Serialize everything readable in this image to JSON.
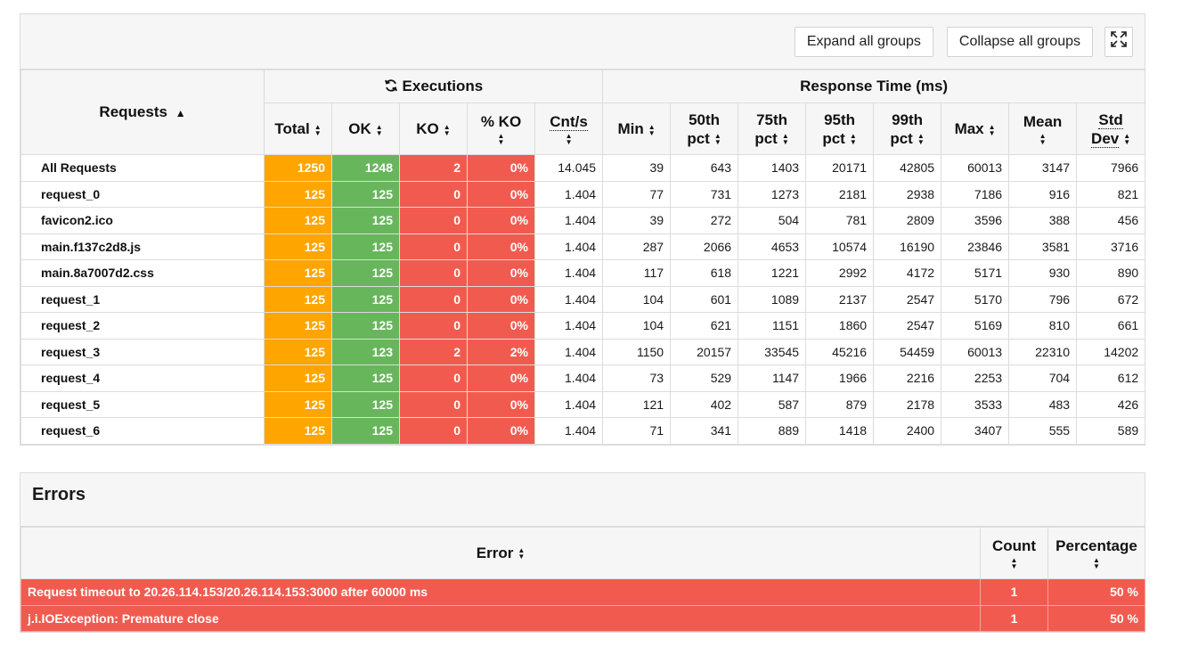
{
  "toolbar": {
    "expand_label": "Expand all groups",
    "collapse_label": "Collapse all groups",
    "fullscreen_icon": "expand-arrows-icon"
  },
  "stats": {
    "requests_header": "Requests",
    "executions_header": "Executions",
    "response_time_header": "Response Time (ms)",
    "columns": {
      "total": "Total",
      "ok": "OK",
      "ko": "KO",
      "pko": "% KO",
      "cnts": "Cnt/s",
      "min": "Min",
      "p50a": "50th",
      "p50b": "pct",
      "p75a": "75th",
      "p75b": "pct",
      "p95a": "95th",
      "p95b": "pct",
      "p99a": "99th",
      "p99b": "pct",
      "max": "Max",
      "mean": "Mean",
      "stda": "Std",
      "stdb": "Dev"
    },
    "rows": [
      {
        "name": "All Requests",
        "total": "1250",
        "ok": "1248",
        "ko": "2",
        "pko": "0%",
        "cnts": "14.045",
        "min": "39",
        "p50": "643",
        "p75": "1403",
        "p95": "20171",
        "p99": "42805",
        "max": "60013",
        "mean": "3147",
        "std": "7966"
      },
      {
        "name": "request_0",
        "total": "125",
        "ok": "125",
        "ko": "0",
        "pko": "0%",
        "cnts": "1.404",
        "min": "77",
        "p50": "731",
        "p75": "1273",
        "p95": "2181",
        "p99": "2938",
        "max": "7186",
        "mean": "916",
        "std": "821"
      },
      {
        "name": "favicon2.ico",
        "total": "125",
        "ok": "125",
        "ko": "0",
        "pko": "0%",
        "cnts": "1.404",
        "min": "39",
        "p50": "272",
        "p75": "504",
        "p95": "781",
        "p99": "2809",
        "max": "3596",
        "mean": "388",
        "std": "456"
      },
      {
        "name": "main.f137c2d8.js",
        "total": "125",
        "ok": "125",
        "ko": "0",
        "pko": "0%",
        "cnts": "1.404",
        "min": "287",
        "p50": "2066",
        "p75": "4653",
        "p95": "10574",
        "p99": "16190",
        "max": "23846",
        "mean": "3581",
        "std": "3716"
      },
      {
        "name": "main.8a7007d2.css",
        "total": "125",
        "ok": "125",
        "ko": "0",
        "pko": "0%",
        "cnts": "1.404",
        "min": "117",
        "p50": "618",
        "p75": "1221",
        "p95": "2992",
        "p99": "4172",
        "max": "5171",
        "mean": "930",
        "std": "890"
      },
      {
        "name": "request_1",
        "total": "125",
        "ok": "125",
        "ko": "0",
        "pko": "0%",
        "cnts": "1.404",
        "min": "104",
        "p50": "601",
        "p75": "1089",
        "p95": "2137",
        "p99": "2547",
        "max": "5170",
        "mean": "796",
        "std": "672"
      },
      {
        "name": "request_2",
        "total": "125",
        "ok": "125",
        "ko": "0",
        "pko": "0%",
        "cnts": "1.404",
        "min": "104",
        "p50": "621",
        "p75": "1151",
        "p95": "1860",
        "p99": "2547",
        "max": "5169",
        "mean": "810",
        "std": "661"
      },
      {
        "name": "request_3",
        "total": "125",
        "ok": "123",
        "ko": "2",
        "pko": "2%",
        "cnts": "1.404",
        "min": "1150",
        "p50": "20157",
        "p75": "33545",
        "p95": "45216",
        "p99": "54459",
        "max": "60013",
        "mean": "22310",
        "std": "14202"
      },
      {
        "name": "request_4",
        "total": "125",
        "ok": "125",
        "ko": "0",
        "pko": "0%",
        "cnts": "1.404",
        "min": "73",
        "p50": "529",
        "p75": "1147",
        "p95": "1966",
        "p99": "2216",
        "max": "2253",
        "mean": "704",
        "std": "612"
      },
      {
        "name": "request_5",
        "total": "125",
        "ok": "125",
        "ko": "0",
        "pko": "0%",
        "cnts": "1.404",
        "min": "121",
        "p50": "402",
        "p75": "587",
        "p95": "879",
        "p99": "2178",
        "max": "3533",
        "mean": "483",
        "std": "426"
      },
      {
        "name": "request_6",
        "total": "125",
        "ok": "125",
        "ko": "0",
        "pko": "0%",
        "cnts": "1.404",
        "min": "71",
        "p50": "341",
        "p75": "889",
        "p95": "1418",
        "p99": "2400",
        "max": "3407",
        "mean": "555",
        "std": "589"
      }
    ]
  },
  "errors": {
    "title": "Errors",
    "columns": {
      "error": "Error",
      "count": "Count",
      "percentage": "Percentage"
    },
    "rows": [
      {
        "error": "Request timeout to 20.26.114.153/20.26.114.153:3000 after 60000 ms",
        "count": "1",
        "percentage": "50 %"
      },
      {
        "error": "j.i.IOException: Premature close",
        "count": "1",
        "percentage": "50 %"
      }
    ]
  },
  "colors": {
    "total": "#ffa500",
    "ok": "#68b65c",
    "ko": "#f15b4f",
    "header_bg": "#f6f6f6"
  }
}
